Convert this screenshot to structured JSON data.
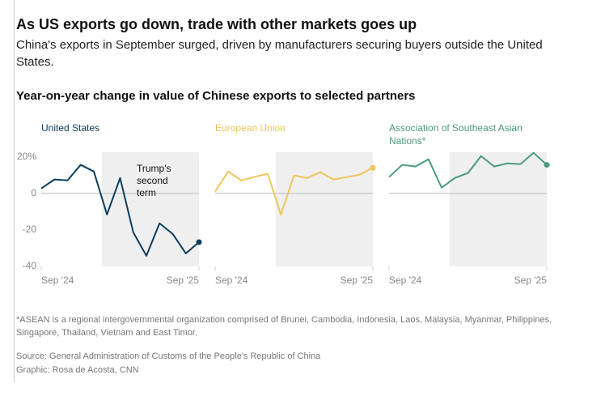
{
  "header": {
    "title": "As US exports go down, trade with other markets goes up",
    "subtitle": "China's exports in September surged, driven by manufacturers securing buyers outside the United States.",
    "chart_title": "Year-on-year change in value of Chinese exports to selected partners"
  },
  "chart_data": [
    {
      "type": "line",
      "title": "United States",
      "categories": [
        "Sep '24",
        null,
        null,
        null,
        null,
        null,
        null,
        null,
        null,
        null,
        null,
        null,
        "Sep '25"
      ],
      "series": [
        {
          "color": "#0d3d5c",
          "values": [
            2.7,
            7.6,
            7.1,
            15.6,
            12,
            -11.6,
            8.4,
            -21.3,
            -34.2,
            -16.4,
            -22.2,
            -32.9,
            -26.7
          ]
        }
      ],
      "ylim": [
        -40,
        22.5
      ],
      "yticks": [
        {
          "value": 20,
          "label": "20%"
        },
        0,
        -20,
        -40
      ],
      "shade": [
        4.6,
        12
      ],
      "annotation": "Trump's second term"
    },
    {
      "type": "line",
      "title": "European Union",
      "categories": [
        "Sep '24",
        null,
        null,
        null,
        null,
        null,
        null,
        null,
        null,
        null,
        null,
        null,
        "Sep '25"
      ],
      "series": [
        {
          "color": "#eec55b",
          "values": [
            1,
            12,
            7,
            9,
            10.7,
            -11.6,
            9.8,
            8.4,
            11.6,
            7.6,
            8.9,
            10.2,
            14
          ]
        }
      ],
      "ylim": [
        -40,
        22.5
      ],
      "shade": [
        4.6,
        12
      ]
    },
    {
      "type": "line",
      "title": "Association of Southeast Asian Nations*",
      "categories": [
        "Sep '24",
        null,
        null,
        null,
        null,
        null,
        null,
        null,
        null,
        null,
        null,
        null,
        "Sep '25"
      ],
      "series": [
        {
          "color": "#4a9a7f",
          "values": [
            8.9,
            15.6,
            14.7,
            18.7,
            3.1,
            8.4,
            11.1,
            20.4,
            14.7,
            16.4,
            16,
            22.2,
            15.6
          ]
        }
      ],
      "ylim": [
        -40,
        22.5
      ],
      "shade": [
        4.6,
        12
      ]
    }
  ],
  "footer": {
    "note": "*ASEAN is a regional intergovernmental organization comprised of Brunei, Cambodia, Indonesia, Laos, Malaysia, Myanmar, Philippines, Singapore, Thailand, Vietnam and East Timor.",
    "source": "Source: General Administration of Customs of the People's Republic of China",
    "credit": "Graphic: Rosa de Acosta, CNN"
  }
}
